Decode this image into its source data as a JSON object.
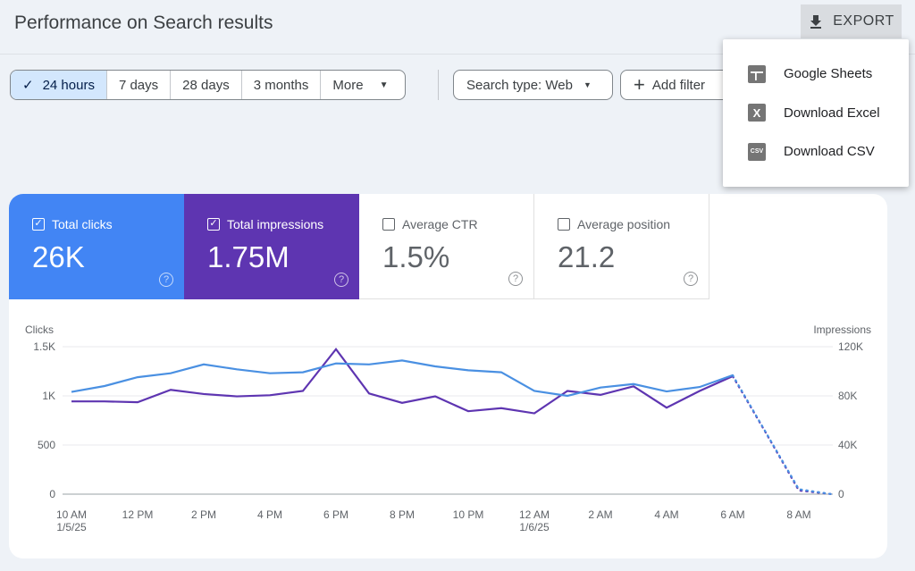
{
  "header": {
    "title": "Performance on Search results",
    "export_label": "EXPORT"
  },
  "filters": {
    "ranges": [
      "24 hours",
      "7 days",
      "28 days",
      "3 months",
      "More"
    ],
    "selected": "24 hours",
    "search_type": "Search type: Web",
    "add_filter": "Add filter"
  },
  "export_menu": {
    "items": [
      {
        "label": "Google Sheets",
        "icon": "sheets-icon",
        "glyph": ""
      },
      {
        "label": "Download Excel",
        "icon": "excel-icon",
        "glyph": "X"
      },
      {
        "label": "Download CSV",
        "icon": "csv-icon",
        "glyph": "CSV"
      }
    ]
  },
  "metrics": [
    {
      "label": "Total clicks",
      "value": "26K",
      "checked": true,
      "color": "#4285f4"
    },
    {
      "label": "Total impressions",
      "value": "1.75M",
      "checked": true,
      "color": "#5e35b1"
    },
    {
      "label": "Average CTR",
      "value": "1.5%",
      "checked": false
    },
    {
      "label": "Average position",
      "value": "21.2",
      "checked": false
    }
  ],
  "chart_data": {
    "type": "line",
    "left_axis_label": "Clicks",
    "right_axis_label": "Impressions",
    "left_ticks": [
      "0",
      "500",
      "1K",
      "1.5K"
    ],
    "left_range": [
      0,
      1500
    ],
    "right_ticks": [
      "0",
      "40K",
      "80K",
      "120K"
    ],
    "right_range": [
      0,
      120000
    ],
    "x_ticks": [
      {
        "label": "10 AM",
        "sub": "1/5/25"
      },
      {
        "label": "12 PM"
      },
      {
        "label": "2 PM"
      },
      {
        "label": "4 PM"
      },
      {
        "label": "6 PM"
      },
      {
        "label": "8 PM"
      },
      {
        "label": "10 PM"
      },
      {
        "label": "12 AM",
        "sub": "1/6/25"
      },
      {
        "label": "2 AM"
      },
      {
        "label": "4 AM"
      },
      {
        "label": "6 AM"
      },
      {
        "label": "8 AM"
      }
    ],
    "x": [
      "10AM",
      "11AM",
      "12PM",
      "1PM",
      "2PM",
      "3PM",
      "4PM",
      "5PM",
      "6PM",
      "7PM",
      "8PM",
      "9PM",
      "10PM",
      "11PM",
      "12AM",
      "1AM",
      "2AM",
      "3AM",
      "4AM",
      "5AM",
      "6AM",
      "7AM",
      "8AM",
      "9AM"
    ],
    "partial_from_index": 20,
    "series": [
      {
        "name": "Clicks",
        "axis": "left",
        "color": "#4a90e2",
        "values": [
          1040,
          1100,
          1190,
          1230,
          1320,
          1270,
          1230,
          1240,
          1330,
          1320,
          1360,
          1300,
          1260,
          1240,
          1050,
          1000,
          1085,
          1120,
          1045,
          1090,
          1210,
          630,
          50,
          0
        ]
      },
      {
        "name": "Impressions",
        "axis": "right",
        "color": "#5e35b1",
        "values": [
          75500,
          75500,
          74800,
          84900,
          81500,
          79600,
          80500,
          84000,
          118000,
          82000,
          74300,
          79600,
          67500,
          70000,
          65800,
          84000,
          80800,
          87800,
          70400,
          84000,
          96000,
          50000,
          3000,
          0
        ]
      }
    ],
    "grid": true
  }
}
